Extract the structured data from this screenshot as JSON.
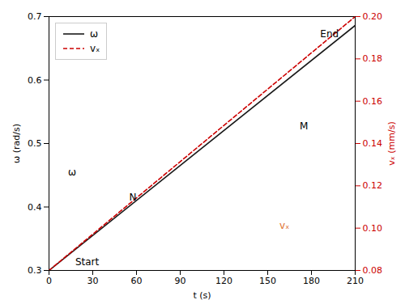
{
  "chart_data": {
    "type": "line",
    "xlabel": "t (s)",
    "ylabel": "ω (rad/s)",
    "y2label": "vₓ (mm/s)",
    "x": [
      0,
      210
    ],
    "series": [
      {
        "name": "ω",
        "color": "#1a1a1a",
        "line_style": "solid",
        "values": [
          0.3,
          0.686
        ]
      },
      {
        "name": "vₓ",
        "color": "#cc0000",
        "line_style": "dashed",
        "axis": "y2",
        "values": [
          0.08,
          0.2
        ]
      }
    ],
    "xlim": [
      0,
      210
    ],
    "xticks": [
      0,
      30,
      60,
      90,
      120,
      150,
      180,
      210
    ],
    "ylim": [
      0.3,
      0.7
    ],
    "yticks": [
      0.3,
      0.4,
      0.5,
      0.6,
      0.7
    ],
    "y2lim": [
      0.08,
      0.2
    ],
    "y2ticks": [
      0.08,
      {
        "value": 0.1,
        "label": "0.10"
      },
      0.12,
      0.14,
      0.16,
      0.18,
      {
        "value": 0.2,
        "label": "0.20"
      }
    ],
    "y2color": "#cc0000",
    "grid": false,
    "legend": "upper left",
    "annotations": [
      {
        "text": "ω",
        "x": 13,
        "y": 0.455
      },
      {
        "text": "N",
        "x": 55,
        "y": 0.415
      },
      {
        "text": "Start",
        "x": 18,
        "y": 0.313
      },
      {
        "text": "End",
        "x": 186,
        "y": 0.672
      },
      {
        "text": "M",
        "x": 172,
        "y": 0.527
      },
      {
        "text": "vₓ",
        "x": 158,
        "y": 0.37,
        "color": "#e07030"
      }
    ]
  }
}
